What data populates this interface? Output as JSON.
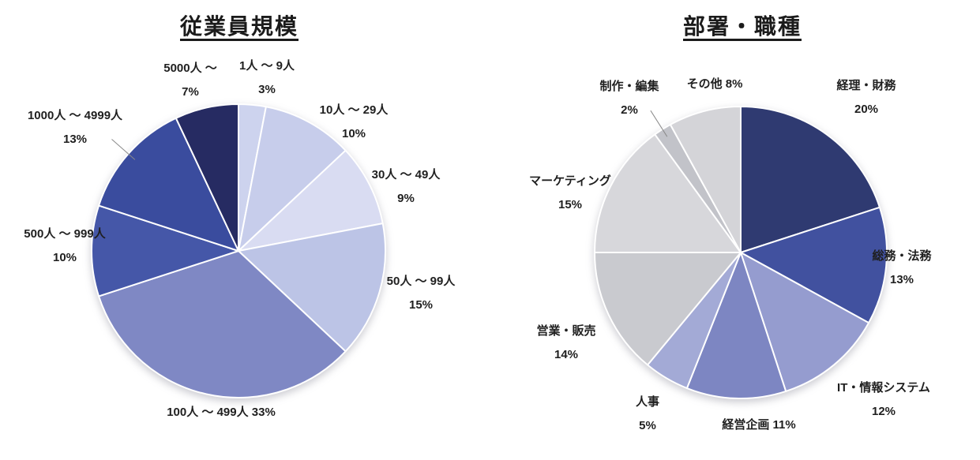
{
  "chart_data": [
    {
      "type": "pie",
      "title": "従業員規模",
      "direction": "clockwise",
      "start_angle_deg": 0,
      "legend_position": "none",
      "labels": [
        "1人 ～ 9人",
        "10人 ～ 29人",
        "30人 ～ 49人",
        "50人 ～ 99人",
        "100人 ～ 499人",
        "500人 ～ 999人",
        "1000人 ～ 4999人",
        "5000人 ～"
      ],
      "values": [
        3,
        10,
        9,
        15,
        33,
        10,
        13,
        7
      ],
      "pct_labels": [
        "3%",
        "10%",
        "9%",
        "15%",
        "33%",
        "10%",
        "13%",
        "7%"
      ],
      "colors": [
        "#cdd3ee",
        "#c7cdeb",
        "#d9dcf2",
        "#bcc4e6",
        "#7f88c4",
        "#4557a8",
        "#3a4c9e",
        "#262b62"
      ]
    },
    {
      "type": "pie",
      "title": "部署・職種",
      "direction": "clockwise",
      "start_angle_deg": 0,
      "legend_position": "none",
      "labels": [
        "経理・財務",
        "総務・法務",
        "IT・情報システム",
        "経営企画",
        "人事",
        "営業・販売",
        "マーケティング",
        "制作・編集",
        "その他"
      ],
      "values": [
        20,
        13,
        12,
        11,
        5,
        14,
        15,
        2,
        8
      ],
      "pct_labels": [
        "20%",
        "13%",
        "12%",
        "11%",
        "5%",
        "14%",
        "15%",
        "2%",
        "8%"
      ],
      "colors": [
        "#2f3a71",
        "#41519f",
        "#959ccf",
        "#7d86c2",
        "#a3aad6",
        "#c9cacf",
        "#d7d7db",
        "#c2c3c9",
        "#d4d4d8"
      ]
    }
  ],
  "colors": {
    "background": "#ffffff",
    "slice_border": "#ffffff",
    "leader_line": "#8a8a8a",
    "text": "#1f1f1f"
  }
}
